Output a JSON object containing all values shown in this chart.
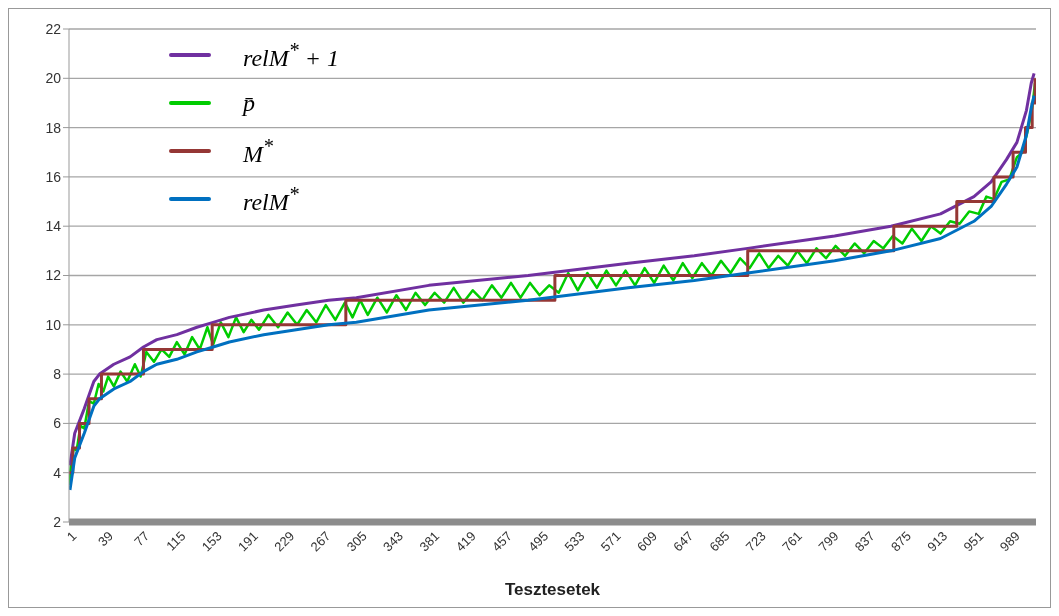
{
  "chart_data": {
    "type": "line",
    "xlabel": "Tesztesetek",
    "xlim": [
      1,
      1014
    ],
    "xticks": [
      1,
      39,
      77,
      115,
      153,
      191,
      229,
      267,
      305,
      343,
      381,
      419,
      457,
      495,
      533,
      571,
      609,
      647,
      685,
      723,
      761,
      799,
      837,
      875,
      913,
      951,
      989
    ],
    "ylim": [
      2,
      22
    ],
    "yticks": [
      2,
      4,
      6,
      8,
      10,
      12,
      14,
      16,
      18,
      20,
      22
    ],
    "grid": "y",
    "legend": "top left",
    "series": [
      {
        "name": "relM$^{*}$ + 1",
        "color": "#7030a0",
        "x": [
          2,
          7,
          17,
          27,
          33,
          48,
          65,
          79,
          93,
          114,
          135,
          152,
          169,
          205,
          239,
          273,
          302,
          378,
          482,
          587,
          656,
          712,
          803,
          862,
          914,
          949,
          967,
          983,
          994,
          1004,
          1009,
          1012
        ],
        "values": [
          4.3,
          5.6,
          6.6,
          7.7,
          8.0,
          8.4,
          8.7,
          9.1,
          9.4,
          9.6,
          9.9,
          10.1,
          10.3,
          10.6,
          10.8,
          11.0,
          11.1,
          11.6,
          12.0,
          12.5,
          12.8,
          13.1,
          13.6,
          14.0,
          14.5,
          15.2,
          15.8,
          16.7,
          17.4,
          18.7,
          19.8,
          20.2
        ]
      },
      {
        "name": "p̄",
        "color": "#00cc00",
        "x": [
          1,
          3,
          6,
          9,
          13,
          17,
          22,
          27,
          32,
          37,
          42,
          48,
          55,
          62,
          70,
          76,
          82,
          90,
          98,
          106,
          114,
          122,
          130,
          138,
          146,
          152,
          160,
          168,
          176,
          184,
          192,
          200,
          210,
          220,
          230,
          240,
          250,
          260,
          270,
          280,
          290,
          298,
          306,
          314,
          324,
          334,
          344,
          354,
          364,
          374,
          384,
          394,
          404,
          414,
          424,
          434,
          444,
          454,
          464,
          474,
          484,
          494,
          504,
          514,
          524,
          534,
          544,
          554,
          564,
          574,
          584,
          594,
          604,
          614,
          624,
          634,
          644,
          654,
          664,
          674,
          684,
          694,
          704,
          714,
          724,
          734,
          744,
          754,
          764,
          774,
          784,
          794,
          804,
          814,
          824,
          834,
          844,
          854,
          864,
          874,
          884,
          894,
          904,
          914,
          924,
          934,
          944,
          954,
          962,
          970,
          978,
          986,
          994,
          1000,
          1006,
          1010,
          1013
        ],
        "values": [
          3.5,
          4.3,
          5.0,
          4.9,
          5.9,
          5.8,
          6.9,
          6.8,
          7.6,
          7.3,
          7.9,
          7.5,
          8.1,
          7.7,
          8.4,
          7.9,
          8.9,
          8.5,
          9.0,
          8.7,
          9.3,
          8.8,
          9.5,
          9.0,
          9.9,
          9.2,
          10.1,
          9.5,
          10.3,
          9.7,
          10.2,
          9.8,
          10.4,
          9.9,
          10.5,
          10.0,
          10.6,
          10.1,
          10.8,
          10.2,
          10.9,
          10.3,
          11.0,
          10.4,
          11.1,
          10.5,
          11.2,
          10.6,
          11.3,
          10.8,
          11.3,
          10.9,
          11.5,
          10.9,
          11.4,
          11.0,
          11.6,
          11.1,
          11.7,
          11.1,
          11.7,
          11.2,
          11.6,
          11.3,
          12.1,
          11.4,
          12.1,
          11.5,
          12.2,
          11.6,
          12.2,
          11.6,
          12.3,
          11.7,
          12.4,
          11.8,
          12.5,
          11.9,
          12.5,
          12.0,
          12.6,
          12.1,
          12.7,
          12.3,
          12.9,
          12.3,
          12.8,
          12.4,
          13.0,
          12.5,
          13.1,
          12.7,
          13.2,
          12.8,
          13.3,
          12.9,
          13.4,
          13.1,
          13.6,
          13.3,
          13.9,
          13.4,
          14.0,
          13.7,
          14.2,
          14.1,
          14.6,
          14.5,
          15.2,
          15.1,
          15.8,
          15.9,
          16.8,
          17.0,
          18.0,
          18.8,
          19.8
        ]
      },
      {
        "name": "M$^{*}$",
        "type": "step",
        "color": "#953735",
        "x": [
          1,
          5,
          12,
          22,
          35,
          79,
          151,
          291,
          510,
          712,
          865,
          931,
          970,
          990,
          1003,
          1010,
          1013
        ],
        "values": [
          4,
          5,
          6,
          7,
          8,
          9,
          10,
          11,
          12,
          13,
          14,
          15,
          16,
          17,
          18,
          19,
          20
        ]
      },
      {
        "name": "relM$^{*}$",
        "color": "#0070c0",
        "x": [
          2,
          7,
          17,
          27,
          33,
          48,
          65,
          79,
          93,
          114,
          135,
          152,
          169,
          205,
          239,
          273,
          302,
          378,
          482,
          587,
          656,
          712,
          803,
          862,
          914,
          949,
          967,
          983,
          994,
          1004,
          1009,
          1012
        ],
        "values": [
          3.3,
          4.6,
          5.6,
          6.7,
          7.0,
          7.4,
          7.7,
          8.1,
          8.4,
          8.6,
          8.9,
          9.1,
          9.3,
          9.6,
          9.8,
          10.0,
          10.1,
          10.6,
          11.0,
          11.5,
          11.8,
          12.1,
          12.6,
          13.0,
          13.5,
          14.2,
          14.8,
          15.7,
          16.4,
          17.7,
          18.8,
          19.3
        ]
      }
    ]
  }
}
